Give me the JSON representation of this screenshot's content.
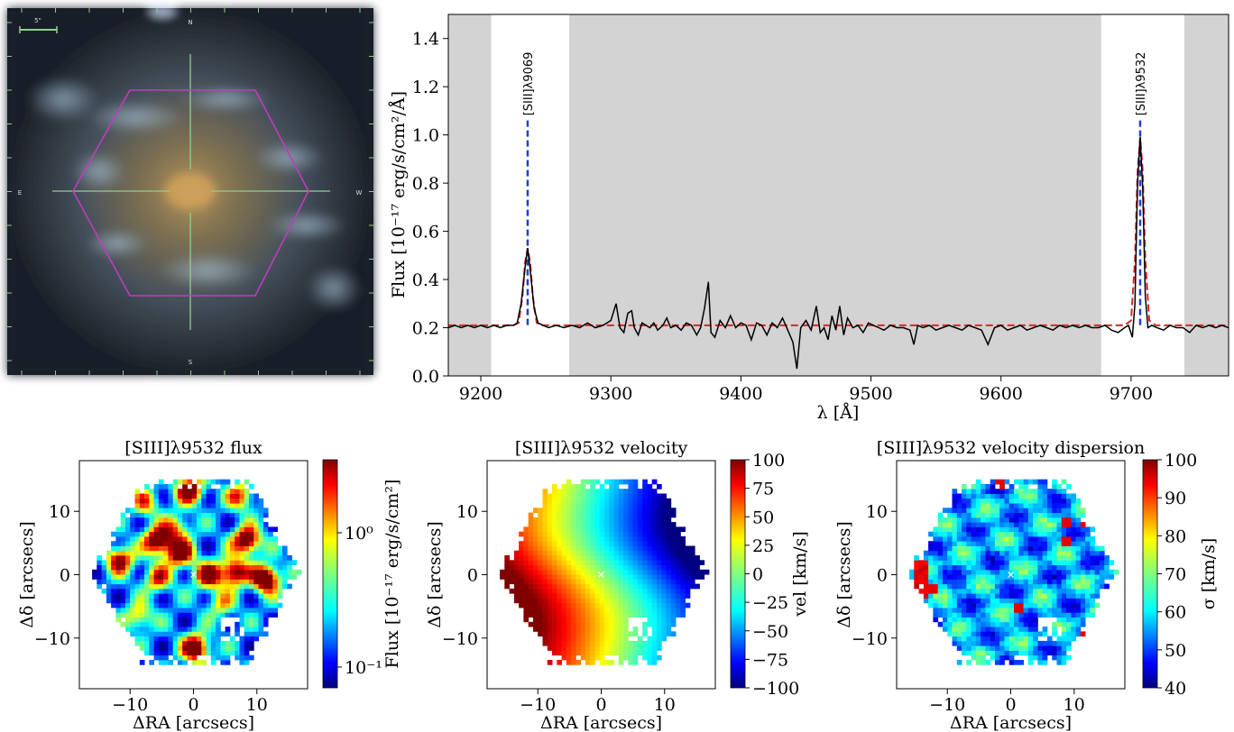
{
  "galaxy_image": {
    "scale_label": "5\"",
    "compass": {
      "n": "N",
      "s": "S",
      "e": "E",
      "w": "W"
    },
    "colors": {
      "hexagon": "#c03cc0",
      "crosshair": "#8fd08f",
      "scale_bar": "#8fd08f"
    }
  },
  "chart_data": [
    {
      "type": "line",
      "id": "spectrum",
      "xlabel": "λ [Å]",
      "ylabel": "Flux [10⁻¹⁷ erg/s/cm²/Å]",
      "xlim": [
        9175,
        9775
      ],
      "ylim": [
        0.0,
        1.5
      ],
      "xticks": [
        9200,
        9300,
        9400,
        9500,
        9600,
        9700
      ],
      "yticks": [
        0.0,
        0.2,
        0.4,
        0.6,
        0.8,
        1.0,
        1.2,
        1.4
      ],
      "unmasked_windows": [
        [
          9208,
          9268
        ],
        [
          9677,
          9741
        ]
      ],
      "continuum_level": 0.21,
      "lines": [
        {
          "label": "[SIII]λ9069",
          "wavelength": 9236,
          "peak": 0.53
        },
        {
          "label": "[SIII]λ9532",
          "wavelength": 9707,
          "peak": 0.99
        }
      ],
      "observed": {
        "x": [
          9175,
          9180,
          9185,
          9190,
          9195,
          9200,
          9205,
          9210,
          9215,
          9220,
          9225,
          9228,
          9231,
          9234,
          9236,
          9238,
          9241,
          9244,
          9248,
          9252,
          9258,
          9264,
          9270,
          9276,
          9282,
          9288,
          9294,
          9300,
          9304,
          9307,
          9310,
          9313,
          9316,
          9318,
          9321,
          9324,
          9327,
          9330,
          9333,
          9336,
          9340,
          9343,
          9346,
          9350,
          9354,
          9358,
          9362,
          9366,
          9369,
          9372,
          9375,
          9377,
          9380,
          9384,
          9388,
          9392,
          9396,
          9400,
          9404,
          9408,
          9412,
          9416,
          9420,
          9424,
          9428,
          9432,
          9436,
          9440,
          9443,
          9446,
          9450,
          9454,
          9458,
          9461,
          9464,
          9467,
          9470,
          9473,
          9476,
          9479,
          9482,
          9486,
          9490,
          9494,
          9498,
          9502,
          9506,
          9510,
          9515,
          9520,
          9525,
          9530,
          9533,
          9536,
          9540,
          9545,
          9550,
          9555,
          9560,
          9565,
          9570,
          9575,
          9580,
          9585,
          9590,
          9595,
          9600,
          9605,
          9610,
          9615,
          9620,
          9625,
          9630,
          9635,
          9640,
          9645,
          9650,
          9655,
          9660,
          9665,
          9670,
          9675,
          9680,
          9685,
          9690,
          9695,
          9698,
          9701,
          9703,
          9705,
          9707,
          9709,
          9711,
          9713,
          9716,
          9720,
          9725,
          9730,
          9735,
          9740,
          9745,
          9750,
          9755,
          9760,
          9765,
          9770,
          9775
        ],
        "y": [
          0.2,
          0.21,
          0.2,
          0.21,
          0.2,
          0.21,
          0.2,
          0.21,
          0.2,
          0.21,
          0.21,
          0.22,
          0.3,
          0.45,
          0.53,
          0.44,
          0.28,
          0.22,
          0.21,
          0.2,
          0.21,
          0.2,
          0.21,
          0.2,
          0.22,
          0.2,
          0.21,
          0.23,
          0.3,
          0.2,
          0.18,
          0.26,
          0.27,
          0.2,
          0.17,
          0.22,
          0.21,
          0.2,
          0.22,
          0.19,
          0.21,
          0.24,
          0.2,
          0.21,
          0.19,
          0.22,
          0.21,
          0.17,
          0.2,
          0.28,
          0.39,
          0.18,
          0.16,
          0.23,
          0.2,
          0.25,
          0.2,
          0.22,
          0.21,
          0.15,
          0.22,
          0.21,
          0.17,
          0.22,
          0.2,
          0.24,
          0.19,
          0.14,
          0.03,
          0.2,
          0.23,
          0.19,
          0.29,
          0.18,
          0.2,
          0.15,
          0.25,
          0.19,
          0.29,
          0.17,
          0.24,
          0.2,
          0.21,
          0.18,
          0.22,
          0.21,
          0.2,
          0.19,
          0.21,
          0.2,
          0.2,
          0.19,
          0.13,
          0.21,
          0.2,
          0.21,
          0.19,
          0.2,
          0.21,
          0.2,
          0.19,
          0.21,
          0.2,
          0.19,
          0.13,
          0.2,
          0.21,
          0.19,
          0.2,
          0.21,
          0.19,
          0.2,
          0.21,
          0.2,
          0.19,
          0.21,
          0.2,
          0.21,
          0.2,
          0.21,
          0.2,
          0.2,
          0.21,
          0.19,
          0.18,
          0.2,
          0.21,
          0.16,
          0.3,
          0.8,
          0.99,
          0.78,
          0.33,
          0.2,
          0.21,
          0.2,
          0.19,
          0.21,
          0.2,
          0.2,
          0.18,
          0.21,
          0.2,
          0.21,
          0.2,
          0.21,
          0.2
        ]
      },
      "model": {
        "x": [
          9175,
          9225,
          9229,
          9232,
          9234,
          9236,
          9238,
          9240,
          9243,
          9247,
          9300,
          9695,
          9700,
          9703,
          9705,
          9707,
          9709,
          9711,
          9714,
          9719,
          9775
        ],
        "y": [
          0.21,
          0.21,
          0.22,
          0.33,
          0.47,
          0.53,
          0.47,
          0.33,
          0.22,
          0.21,
          0.21,
          0.21,
          0.23,
          0.48,
          0.85,
          0.99,
          0.85,
          0.48,
          0.23,
          0.21,
          0.21
        ]
      },
      "colors": {
        "observed": "#000000",
        "model": "#d62728",
        "line_marker": "#1f3fcc",
        "masked": "#d3d3d3"
      }
    },
    {
      "type": "heatmap",
      "id": "flux_map",
      "title": "[SIII]λ9532 flux",
      "xlabel": "ΔRA [arcsecs]",
      "ylabel": "Δδ [arcsecs]",
      "colorbar_label": "Flux [10⁻¹⁷ erg/s/cm²]",
      "colorbar_scale": "log",
      "colorbar_ticks": [
        "10⁰",
        "10⁻¹"
      ],
      "colorbar_tick_values": [
        1.0,
        0.1
      ],
      "colorbar_range": [
        0.07,
        3.5
      ],
      "colormap": "jet",
      "xlim": [
        -18,
        18
      ],
      "ylim": [
        -18,
        18
      ],
      "ticks": [
        -10,
        0,
        10
      ],
      "tick_labels": [
        "−10",
        "0",
        "10"
      ]
    },
    {
      "type": "heatmap",
      "id": "velocity_map",
      "title": "[SIII]λ9532 velocity",
      "xlabel": "ΔRA [arcsecs]",
      "ylabel": "Δδ [arcsecs]",
      "colorbar_label": "vel [km/s]",
      "colorbar_ticks": [
        "100",
        "75",
        "50",
        "25",
        "0",
        "−25",
        "−50",
        "−75",
        "−100"
      ],
      "colorbar_tick_values": [
        100,
        75,
        50,
        25,
        0,
        -25,
        -50,
        -75,
        -100
      ],
      "colorbar_range": [
        -100,
        100
      ],
      "colormap": "jet",
      "xlim": [
        -18,
        18
      ],
      "ylim": [
        -18,
        18
      ],
      "ticks": [
        -10,
        0,
        10
      ],
      "tick_labels": [
        "−10",
        "0",
        "10"
      ]
    },
    {
      "type": "heatmap",
      "id": "dispersion_map",
      "title": "[SIII]λ9532 velocity dispersion",
      "xlabel": "ΔRA [arcsecs]",
      "ylabel": "Δδ [arcsecs]",
      "colorbar_label": "σ [km/s]",
      "colorbar_ticks": [
        "100",
        "90",
        "80",
        "70",
        "60",
        "50",
        "40"
      ],
      "colorbar_tick_values": [
        100,
        90,
        80,
        70,
        60,
        50,
        40
      ],
      "colorbar_range": [
        40,
        100
      ],
      "colormap": "jet",
      "xlim": [
        -18,
        18
      ],
      "ylim": [
        -18,
        18
      ],
      "ticks": [
        -10,
        0,
        10
      ],
      "tick_labels": [
        "−10",
        "0",
        "10"
      ]
    }
  ]
}
